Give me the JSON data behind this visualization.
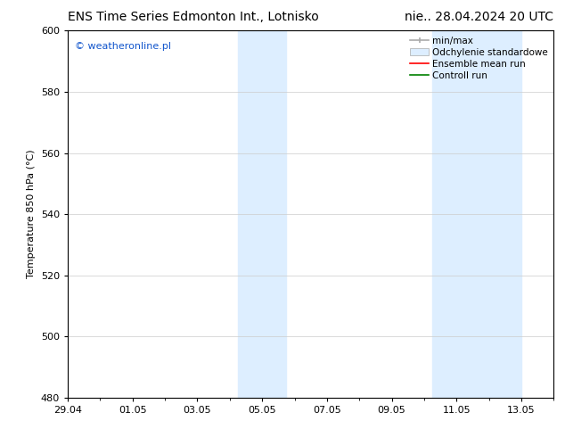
{
  "title_left": "ENS Time Series Edmonton Int., Lotnisko",
  "title_right": "nie.. 28.04.2024 20 UTC",
  "ylabel": "Temperature 850 hPa (°C)",
  "ylim": [
    480,
    600
  ],
  "yticks": [
    480,
    500,
    520,
    540,
    560,
    580,
    600
  ],
  "xlim": [
    0,
    15
  ],
  "xtick_labels": [
    "29.04",
    "01.05",
    "03.05",
    "05.05",
    "07.05",
    "09.05",
    "11.05",
    "13.05"
  ],
  "xtick_positions": [
    0,
    2,
    4,
    6,
    8,
    10,
    12,
    14
  ],
  "shaded_regions": [
    {
      "start": 5.25,
      "end": 6.75
    },
    {
      "start": 11.25,
      "end": 14.0
    }
  ],
  "shade_color": "#ddeeff",
  "watermark_text": "© weatheronline.pl",
  "watermark_color": "#1155cc",
  "background_color": "#ffffff",
  "title_fontsize": 10,
  "tick_fontsize": 8,
  "ylabel_fontsize": 8,
  "legend_fontsize": 7.5,
  "minmax_color": "#aaaaaa",
  "std_facecolor": "#ddeeff",
  "std_edgecolor": "#aaaaaa",
  "ensemble_color": "red",
  "control_color": "green",
  "hgrid_color": "#cccccc",
  "spine_color": "#000000"
}
